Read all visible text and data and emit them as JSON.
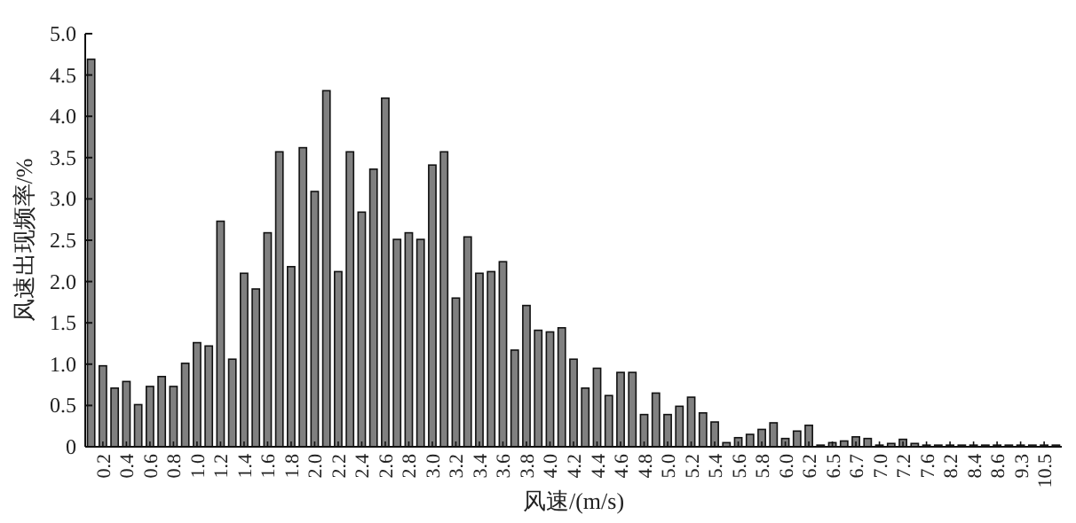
{
  "chart_data": {
    "type": "bar",
    "xlabel": "风速/(m/s)",
    "ylabel": "风速出现频率/%",
    "categories": [
      null,
      "0.2",
      null,
      "0.4",
      null,
      "0.6",
      null,
      "0.8",
      null,
      "1.0",
      null,
      "1.2",
      null,
      "1.4",
      null,
      "1.6",
      null,
      "1.8",
      null,
      "2.0",
      null,
      "2.2",
      null,
      "2.4",
      null,
      "2.6",
      null,
      "2.8",
      null,
      "3.0",
      null,
      "3.2",
      null,
      "3.4",
      null,
      "3.6",
      null,
      "3.8",
      null,
      "4.0",
      null,
      "4.2",
      null,
      "4.4",
      null,
      "4.6",
      null,
      "4.8",
      null,
      "5.0",
      null,
      "5.2",
      null,
      "5.4",
      null,
      "5.6",
      null,
      "5.8",
      null,
      "6.0",
      null,
      "6.2",
      null,
      "6.5",
      null,
      "6.7",
      null,
      "7.0",
      null,
      "7.2",
      null,
      "7.6",
      null,
      "8.2",
      null,
      "8.4",
      null,
      "8.6",
      null,
      "9.3",
      null,
      "10.5",
      null
    ],
    "values": [
      4.69,
      0.98,
      0.71,
      0.79,
      0.51,
      0.73,
      0.85,
      0.73,
      1.01,
      1.26,
      1.22,
      2.73,
      1.06,
      2.1,
      1.91,
      2.59,
      3.57,
      2.18,
      3.62,
      3.09,
      4.31,
      2.12,
      3.57,
      2.84,
      3.36,
      4.22,
      2.51,
      2.59,
      2.51,
      3.41,
      3.57,
      1.8,
      2.54,
      2.1,
      2.12,
      2.24,
      1.17,
      1.71,
      1.41,
      1.39,
      1.44,
      1.06,
      0.71,
      0.95,
      0.62,
      0.9,
      0.9,
      0.39,
      0.65,
      0.39,
      0.49,
      0.6,
      0.41,
      0.3,
      0.05,
      0.11,
      0.15,
      0.21,
      0.29,
      0.1,
      0.19,
      0.26,
      0.02,
      0.05,
      0.07,
      0.12,
      0.1,
      0.02,
      0.04,
      0.09,
      0.04,
      0.02,
      0.02,
      0.02,
      0.02,
      0.02,
      0.02,
      0.02,
      0.02,
      0.02,
      0.02,
      0.02,
      0.02
    ],
    "color": "#808080",
    "ylim": [
      0,
      5.0
    ],
    "yticks": [
      0,
      {
        "value": 0.5,
        "label": "0.5"
      },
      {
        "value": 1.0,
        "label": "1.0"
      },
      {
        "value": 1.5,
        "label": "1.5"
      },
      {
        "value": 2.0,
        "label": "2.0"
      },
      {
        "value": 2.5,
        "label": "2.5"
      },
      {
        "value": 3.0,
        "label": "3.0"
      },
      {
        "value": 3.5,
        "label": "3.5"
      },
      {
        "value": 4.0,
        "label": "4.0"
      },
      {
        "value": 4.5,
        "label": "4.5"
      },
      {
        "value": 5.0,
        "label": "5.0"
      }
    ]
  }
}
